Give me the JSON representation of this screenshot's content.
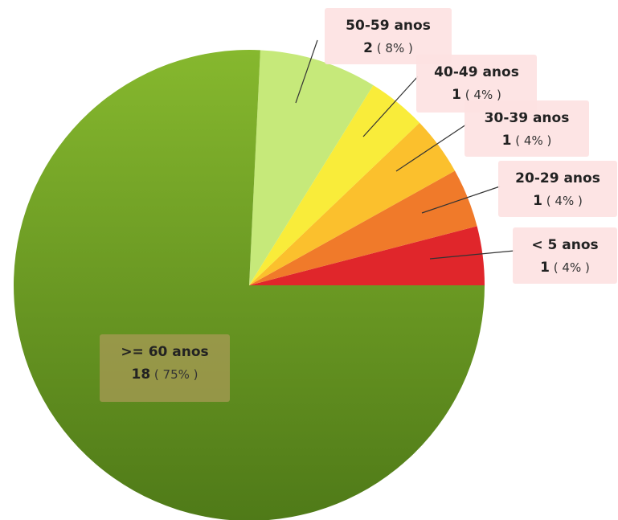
{
  "chart_data": {
    "type": "pie",
    "slices": [
      {
        "label": "< 5 anos",
        "count": "1",
        "pct": "4%",
        "value": 4,
        "color": "#e0262b"
      },
      {
        "label": "20-29 anos",
        "count": "1",
        "pct": "4%",
        "value": 4,
        "color": "#f07a2a"
      },
      {
        "label": "30-39 anos",
        "count": "1",
        "pct": "4%",
        "value": 4,
        "color": "#fbc02d"
      },
      {
        "label": "40-49 anos",
        "count": "1",
        "pct": "4%",
        "value": 4,
        "color": "#f9ec3a"
      },
      {
        "label": "50-59 anos",
        "count": "2",
        "pct": "8%",
        "value": 8,
        "color": "#c6e97a"
      },
      {
        "label": ">= 60 anos",
        "count": "18",
        "pct": "75%",
        "value": 75,
        "color": "#6fa32a"
      }
    ],
    "legend": "none"
  }
}
